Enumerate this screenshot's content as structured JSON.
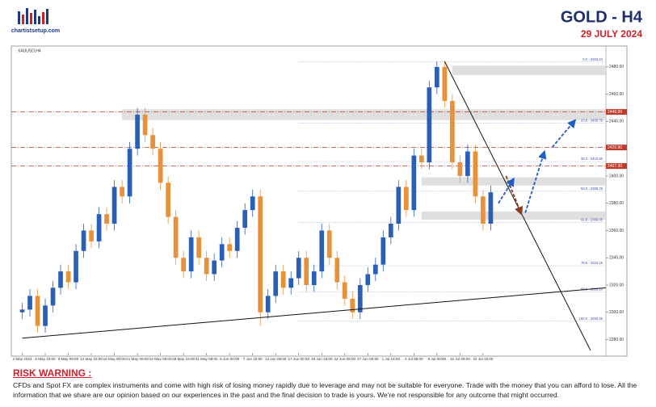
{
  "header": {
    "logo": "chartistsetup.com",
    "title": "GOLD  -  H4",
    "date": "29 JULY 2024"
  },
  "chart_data": {
    "type": "candlestick",
    "symbol": "XAUUSD,H4",
    "categories": [
      "2 May 2024",
      null,
      null,
      "6 May 16:00",
      null,
      null,
      "9 May 08:00",
      null,
      null,
      "14 May 16:00",
      null,
      null,
      "16 May 00:00",
      null,
      null,
      "21 May 08:00",
      null,
      null,
      "24 May 08:00",
      null,
      null,
      "28 May 16:00",
      null,
      null,
      "31 May 08:00",
      null,
      null,
      "5 Jun 00:00",
      null,
      null,
      "7 Jun 16:00",
      null,
      null,
      "12 Jun 08:00",
      null,
      null,
      "17 Jun 00:00",
      null,
      null,
      "19 Jun 16:00",
      null,
      null,
      "24 Jun 08:00",
      null,
      null,
      "27 Jun 00:00",
      null,
      null,
      "1 Jul 16:00",
      null,
      null,
      "4 Jul 08:00",
      null,
      null,
      "9 Jul 00:00",
      null,
      null,
      "16 Jul 08:00",
      null,
      null,
      "23 Jul 16:00",
      null
    ],
    "open": [
      2300,
      2302,
      2312,
      2290,
      2305,
      2318,
      2330,
      2322,
      2345,
      2360,
      2352,
      2372,
      2365,
      2392,
      2385,
      2420,
      2445,
      2430,
      2420,
      2395,
      2370,
      2340,
      2330,
      2355,
      2340,
      2328,
      2338,
      2350,
      2345,
      2362,
      2375,
      2385,
      2300,
      2312,
      2330,
      2318,
      2325,
      2340,
      2320,
      2330,
      2360,
      2340,
      2322,
      2310,
      2300,
      2320,
      2328,
      2335,
      2355,
      2365,
      2392,
      2375,
      2415,
      2410,
      2465,
      2480,
      2455,
      2410,
      2400,
      2418,
      2385,
      2365
    ],
    "high": [
      2307,
      2317,
      2317,
      2310,
      2323,
      2335,
      2335,
      2350,
      2365,
      2365,
      2377,
      2377,
      2397,
      2397,
      2425,
      2450,
      2450,
      2435,
      2425,
      2400,
      2375,
      2345,
      2360,
      2360,
      2345,
      2343,
      2355,
      2355,
      2367,
      2380,
      2390,
      2390,
      2317,
      2335,
      2335,
      2330,
      2345,
      2345,
      2335,
      2365,
      2365,
      2345,
      2327,
      2315,
      2325,
      2333,
      2340,
      2360,
      2370,
      2397,
      2397,
      2420,
      2420,
      2470,
      2484,
      2484,
      2460,
      2415,
      2423,
      2423,
      2390,
      2393
    ],
    "low": [
      2295,
      2297,
      2285,
      2285,
      2300,
      2313,
      2317,
      2317,
      2340,
      2347,
      2347,
      2360,
      2360,
      2380,
      2380,
      2415,
      2425,
      2415,
      2390,
      2365,
      2335,
      2325,
      2325,
      2335,
      2323,
      2323,
      2333,
      2340,
      2340,
      2357,
      2370,
      2290,
      2295,
      2307,
      2313,
      2313,
      2320,
      2315,
      2315,
      2325,
      2335,
      2317,
      2305,
      2295,
      2295,
      2315,
      2323,
      2330,
      2350,
      2360,
      2370,
      2370,
      2405,
      2405,
      2460,
      2450,
      2405,
      2395,
      2395,
      2380,
      2360,
      2360
    ],
    "close": [
      2302,
      2312,
      2290,
      2305,
      2318,
      2330,
      2322,
      2345,
      2360,
      2352,
      2372,
      2365,
      2392,
      2385,
      2420,
      2445,
      2430,
      2420,
      2395,
      2370,
      2340,
      2330,
      2355,
      2340,
      2328,
      2338,
      2350,
      2345,
      2362,
      2375,
      2385,
      2300,
      2312,
      2330,
      2318,
      2325,
      2340,
      2320,
      2330,
      2360,
      2340,
      2322,
      2310,
      2300,
      2320,
      2328,
      2335,
      2355,
      2365,
      2392,
      2375,
      2415,
      2410,
      2465,
      2480,
      2455,
      2410,
      2400,
      2418,
      2385,
      2365,
      2388
    ],
    "up_color": "#2a5fb8",
    "down_color": "#e8913a",
    "xlim": [
      -1,
      76
    ],
    "ylim": [
      2272,
      2490
    ],
    "yticks": [
      {
        "value": 2280,
        "label": "2280.00"
      },
      {
        "value": 2300,
        "label": "2300.00"
      },
      {
        "value": 2320,
        "label": "2320.00"
      },
      {
        "value": 2340,
        "label": "2340.00"
      },
      {
        "value": 2360,
        "label": "2360.00"
      },
      {
        "value": 2380,
        "label": "2380.00"
      },
      {
        "value": 2400,
        "label": "2400.00"
      },
      {
        "value": 2420,
        "label": "2420.00"
      },
      {
        "value": 2440,
        "label": "2440.00"
      },
      {
        "value": 2460,
        "label": "2460.00"
      },
      {
        "value": 2480,
        "label": "2480.00"
      }
    ],
    "fib_levels": [
      {
        "value": 2483.64,
        "label": "0.0 - 2483.64"
      },
      {
        "value": 2438.79,
        "label": "23.6 - 2438.79"
      },
      {
        "value": 2410.6,
        "label": "38.2 - 2410.60"
      },
      {
        "value": 2388.78,
        "label": "50.0 - 2388.78"
      },
      {
        "value": 2366.05,
        "label": "61.8 - 2366.05"
      },
      {
        "value": 2334.15,
        "label": "78.6 - 2334.15"
      },
      {
        "value": 2315.1,
        "label": "88.6 - 2315.10"
      },
      {
        "value": 2293.46,
        "label": "100.0 - 2293.46"
      }
    ],
    "fib_start": 36,
    "red_levels": [
      {
        "value": 2446.99,
        "label": "2446.99"
      },
      {
        "value": 2420.9,
        "label": "2420.90"
      },
      {
        "value": 2407.3,
        "label": "2407.30"
      }
    ],
    "zones": [
      [
        56,
        2474,
        2481
      ],
      [
        13,
        2441,
        2449
      ],
      [
        52,
        2393,
        2399
      ],
      [
        52,
        2368,
        2374
      ]
    ],
    "trendlines": [
      [
        0,
        2281,
        76,
        2318
      ],
      [
        55,
        2484,
        74,
        2272
      ]
    ],
    "projections": [
      {
        "color": "#8b3a1a",
        "points": [
          63,
          2400,
          65,
          2372
        ]
      },
      {
        "color": "#1f5fc4",
        "points": [
          62,
          2380,
          64,
          2398
        ]
      },
      {
        "color": "#1f5fc4",
        "points": [
          65.5,
          2373,
          68,
          2418
        ]
      },
      {
        "color": "#1f5fc4",
        "points": [
          69,
          2421,
          72,
          2441
        ]
      }
    ]
  },
  "risk_warning": {
    "title": "RISK WARNING :",
    "text": "CFDs and Spot FX are complex instruments and come with high risk of losing money rapidly due to leverage and may not be suitable for everyone. Trade with the money that you can afford to lose. All the information that we share are our opinion based on our experiences in the past and the final decision to trade is yours. We're not responsible for any outcome that might occurred."
  }
}
